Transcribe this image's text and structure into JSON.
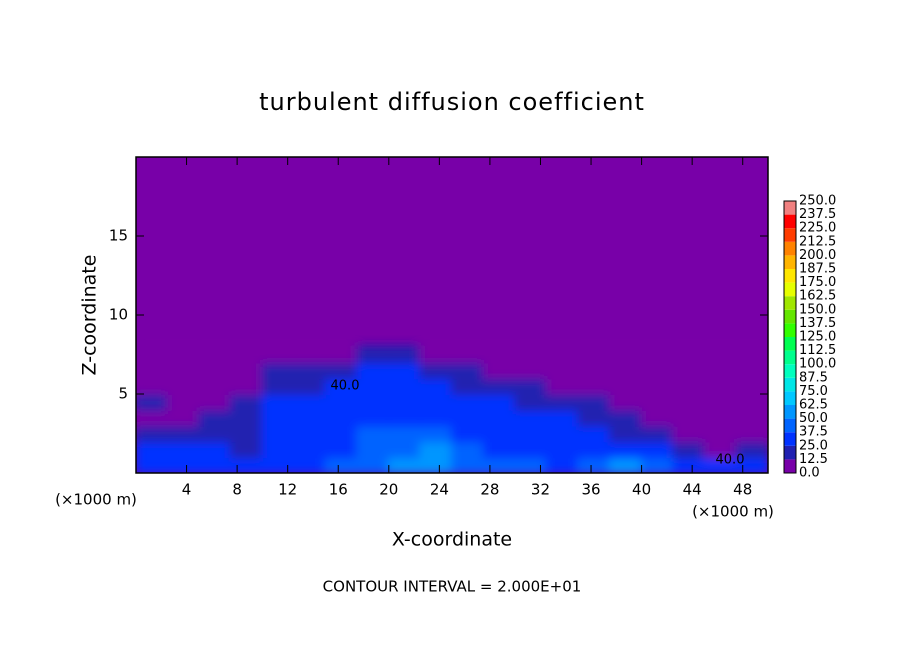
{
  "chart_data": {
    "type": "contour",
    "title": "turbulent diffusion coefficient",
    "x_label": "X-coordinate",
    "y_label": "Z-coordinate",
    "x_unit_label": "(×1000 m)",
    "footer": "CONTOUR INTERVAL = 2.000E+01",
    "contour_labels": [
      "40.0",
      "40.0"
    ],
    "xlim": [
      0,
      50
    ],
    "ylim": [
      0,
      20
    ],
    "xticks": [
      4,
      8,
      12,
      16,
      20,
      24,
      28,
      32,
      36,
      40,
      44,
      48
    ],
    "yticks": [
      5,
      10,
      15
    ],
    "x": [
      1.25,
      3.75,
      6.25,
      8.75,
      11.25,
      13.75,
      16.25,
      18.75,
      21.25,
      23.75,
      26.25,
      28.75,
      31.25,
      33.75,
      36.25,
      38.75,
      41.25,
      43.75,
      46.25,
      48.75
    ],
    "z": [
      0.5,
      1.5,
      2.5,
      3.5,
      4.5,
      5.5,
      6.5,
      7.5
    ],
    "values": [
      [
        35,
        35,
        30,
        30,
        35,
        35,
        40,
        45,
        50,
        60,
        45,
        40,
        40,
        35,
        45,
        50,
        40,
        30,
        25,
        35
      ],
      [
        30,
        25,
        25,
        20,
        25,
        30,
        35,
        40,
        45,
        50,
        40,
        35,
        30,
        30,
        35,
        30,
        25,
        15,
        10,
        20
      ],
      [
        15,
        15,
        20,
        20,
        25,
        25,
        30,
        40,
        40,
        45,
        35,
        30,
        25,
        25,
        25,
        20,
        15,
        5,
        5,
        5
      ],
      [
        10,
        10,
        15,
        15,
        25,
        25,
        30,
        35,
        35,
        35,
        30,
        30,
        25,
        25,
        20,
        15,
        5,
        5,
        5,
        5
      ],
      [
        15,
        10,
        5,
        15,
        25,
        25,
        30,
        35,
        35,
        30,
        25,
        25,
        20,
        20,
        15,
        10,
        5,
        5,
        5,
        5
      ],
      [
        10,
        5,
        5,
        10,
        20,
        20,
        25,
        30,
        30,
        25,
        20,
        20,
        15,
        10,
        5,
        5,
        5,
        5,
        5,
        5
      ],
      [
        5,
        5,
        0,
        5,
        15,
        15,
        20,
        25,
        25,
        20,
        15,
        10,
        5,
        5,
        0,
        0,
        0,
        0,
        0,
        0
      ],
      [
        0,
        0,
        0,
        0,
        5,
        5,
        10,
        20,
        15,
        10,
        5,
        0,
        0,
        0,
        0,
        0,
        0,
        0,
        0,
        0
      ]
    ],
    "colorbar": {
      "levels": [
        {
          "value": 0,
          "label": "0.0"
        },
        {
          "value": 12.5,
          "label": "12.5"
        },
        {
          "value": 25,
          "label": "25.0"
        },
        {
          "value": 37.5,
          "label": "37.5"
        },
        {
          "value": 50,
          "label": "50.0"
        },
        {
          "value": 62.5,
          "label": "62.5"
        },
        {
          "value": 75,
          "label": "75.0"
        },
        {
          "value": 87.5,
          "label": "87.5"
        },
        {
          "value": 100,
          "label": "100.0"
        },
        {
          "value": 112.5,
          "label": "112.5"
        },
        {
          "value": 125,
          "label": "125.0"
        },
        {
          "value": 137.5,
          "label": "137.5"
        },
        {
          "value": 150,
          "label": "150.0"
        },
        {
          "value": 162.5,
          "label": "162.5"
        },
        {
          "value": 175,
          "label": "175.0"
        },
        {
          "value": 187.5,
          "label": "187.5"
        },
        {
          "value": 200,
          "label": "200.0"
        },
        {
          "value": 212.5,
          "label": "212.5"
        },
        {
          "value": 225,
          "label": "225.0"
        },
        {
          "value": 237.5,
          "label": "237.5"
        },
        {
          "value": 250,
          "label": "250.0"
        }
      ],
      "colors": [
        "#7800a8",
        "#2020b0",
        "#0032ff",
        "#0064ff",
        "#0096ff",
        "#00c8ff",
        "#00e6e6",
        "#00ffbe",
        "#00ff8c",
        "#00ff50",
        "#32ff00",
        "#64e600",
        "#a0e600",
        "#e6ff00",
        "#ffe600",
        "#ffb400",
        "#ff8200",
        "#ff3c00",
        "#ff0000",
        "#f08080"
      ]
    }
  }
}
